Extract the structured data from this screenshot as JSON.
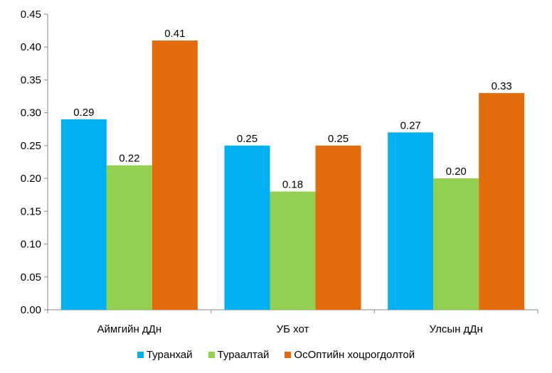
{
  "chart_data": {
    "type": "bar",
    "categories": [
      "Аймгийн дДн",
      "УБ хот",
      "Улсын дДн"
    ],
    "series": [
      {
        "name": "Туранхай",
        "color": "#00b0f0",
        "values": [
          0.29,
          0.25,
          0.27
        ],
        "labels": [
          "0.29",
          "0.25",
          "0.27"
        ]
      },
      {
        "name": "Тураалтай",
        "color": "#92d050",
        "values": [
          0.22,
          0.18,
          0.2
        ],
        "labels": [
          "0.22",
          "0.18",
          "0.20"
        ]
      },
      {
        "name": "ОсОптийн хоцрогдолтой",
        "color": "#e36c0a",
        "values": [
          0.41,
          0.25,
          0.33
        ],
        "labels": [
          "0.41",
          "0.25",
          "0.33"
        ]
      }
    ],
    "yticks": [
      "0.00",
      "0.05",
      "0.10",
      "0.15",
      "0.20",
      "0.25",
      "0.30",
      "0.35",
      "0.40",
      "0.45"
    ],
    "ylim": [
      0,
      0.45
    ],
    "grid": false,
    "legend_position": "bottom",
    "title": "",
    "xlabel": "",
    "ylabel": ""
  }
}
